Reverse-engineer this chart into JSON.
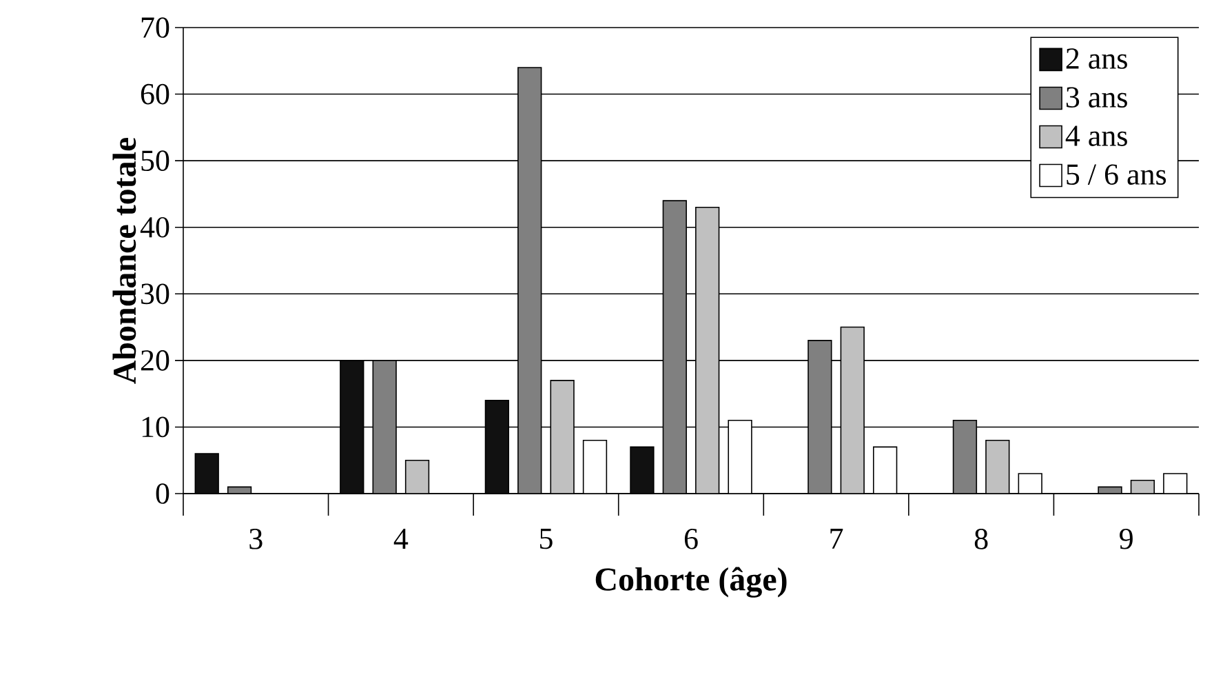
{
  "chart_data": {
    "type": "bar",
    "xlabel": "Cohorte (âge)",
    "ylabel": "Abondance totale",
    "categories": [
      "3",
      "4",
      "5",
      "6",
      "7",
      "8",
      "9"
    ],
    "series": [
      {
        "name": "2 ans",
        "color": "#111111",
        "values": [
          6,
          20,
          14,
          7,
          null,
          null,
          null
        ]
      },
      {
        "name": "3 ans",
        "color": "#808080",
        "values": [
          1,
          20,
          64,
          44,
          23,
          11,
          1
        ]
      },
      {
        "name": "4 ans",
        "color": "#c0c0c0",
        "values": [
          null,
          5,
          17,
          43,
          25,
          8,
          2
        ]
      },
      {
        "name": "5 / 6 ans",
        "color": "#ffffff",
        "values": [
          null,
          null,
          8,
          11,
          7,
          3,
          3
        ]
      }
    ],
    "ylim": [
      0,
      70
    ],
    "yticks": [
      0,
      10,
      20,
      30,
      40,
      50,
      60,
      70
    ],
    "grid": "y",
    "legend": "top right"
  }
}
